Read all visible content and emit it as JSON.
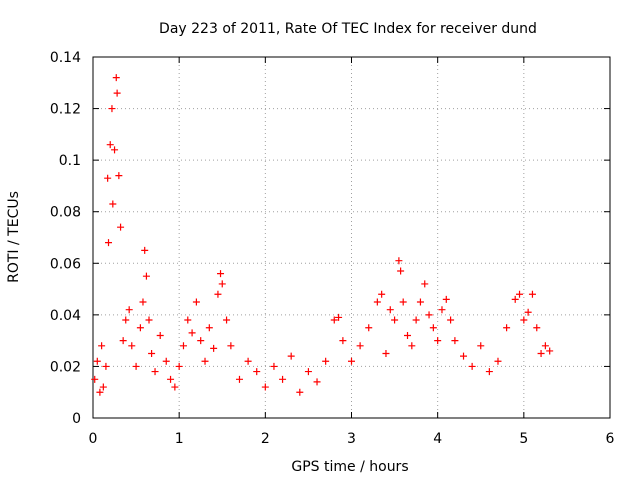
{
  "chart_data": {
    "type": "scatter",
    "title": "Day 223 of 2011, Rate Of TEC Index for receiver dund",
    "xlabel": "GPS time / hours",
    "ylabel": "ROTI / TECUs",
    "xlim": [
      0,
      6
    ],
    "ylim": [
      0,
      0.14
    ],
    "x_ticks": [
      0,
      1,
      2,
      3,
      4,
      5,
      6
    ],
    "x_tick_labels": [
      "0",
      "1",
      "2",
      "3",
      "4",
      "5",
      "6"
    ],
    "y_ticks": [
      0,
      0.02,
      0.04,
      0.06,
      0.08,
      0.1,
      0.12,
      0.14
    ],
    "y_tick_labels": [
      "0",
      "0.02",
      "0.04",
      "0.06",
      "0.08",
      "0.1",
      "0.12",
      "0.14"
    ],
    "grid": true,
    "marker": "+",
    "marker_color": "#ff0000",
    "series": [
      {
        "name": "ROTI",
        "x": [
          0.02,
          0.05,
          0.08,
          0.1,
          0.12,
          0.15,
          0.17,
          0.18,
          0.2,
          0.22,
          0.23,
          0.25,
          0.27,
          0.28,
          0.3,
          0.32,
          0.35,
          0.38,
          0.42,
          0.45,
          0.5,
          0.55,
          0.58,
          0.6,
          0.62,
          0.65,
          0.68,
          0.72,
          0.78,
          0.85,
          0.9,
          0.95,
          1.0,
          1.05,
          1.1,
          1.15,
          1.2,
          1.25,
          1.3,
          1.35,
          1.4,
          1.45,
          1.48,
          1.5,
          1.55,
          1.6,
          1.7,
          1.8,
          1.9,
          2.0,
          2.1,
          2.2,
          2.3,
          2.4,
          2.5,
          2.6,
          2.7,
          2.8,
          2.85,
          2.9,
          3.0,
          3.1,
          3.2,
          3.3,
          3.35,
          3.4,
          3.45,
          3.5,
          3.55,
          3.57,
          3.6,
          3.65,
          3.7,
          3.75,
          3.8,
          3.85,
          3.9,
          3.95,
          4.0,
          4.05,
          4.1,
          4.15,
          4.2,
          4.3,
          4.4,
          4.5,
          4.6,
          4.7,
          4.8,
          4.9,
          4.95,
          5.0,
          5.05,
          5.1,
          5.15,
          5.2,
          5.25,
          5.3
        ],
        "y": [
          0.015,
          0.022,
          0.01,
          0.028,
          0.012,
          0.02,
          0.093,
          0.068,
          0.106,
          0.12,
          0.083,
          0.104,
          0.132,
          0.126,
          0.094,
          0.074,
          0.03,
          0.038,
          0.042,
          0.028,
          0.02,
          0.035,
          0.045,
          0.065,
          0.055,
          0.038,
          0.025,
          0.018,
          0.032,
          0.022,
          0.015,
          0.012,
          0.02,
          0.028,
          0.038,
          0.033,
          0.045,
          0.03,
          0.022,
          0.035,
          0.027,
          0.048,
          0.056,
          0.052,
          0.038,
          0.028,
          0.015,
          0.022,
          0.018,
          0.012,
          0.02,
          0.015,
          0.024,
          0.01,
          0.018,
          0.014,
          0.022,
          0.038,
          0.039,
          0.03,
          0.022,
          0.028,
          0.035,
          0.045,
          0.048,
          0.025,
          0.042,
          0.038,
          0.061,
          0.057,
          0.045,
          0.032,
          0.028,
          0.038,
          0.045,
          0.052,
          0.04,
          0.035,
          0.03,
          0.042,
          0.046,
          0.038,
          0.03,
          0.024,
          0.02,
          0.028,
          0.018,
          0.022,
          0.035,
          0.046,
          0.048,
          0.038,
          0.041,
          0.048,
          0.035,
          0.025,
          0.028,
          0.026
        ]
      }
    ]
  }
}
